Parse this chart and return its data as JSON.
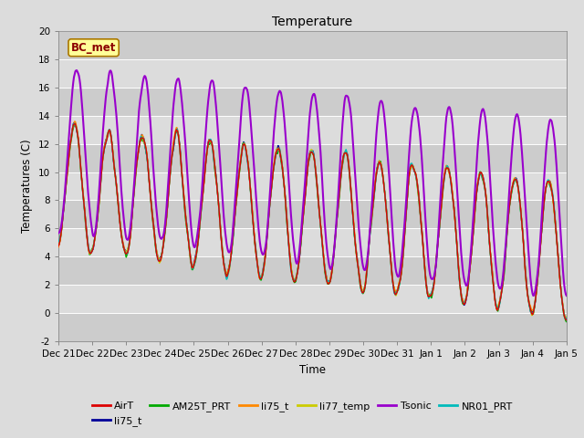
{
  "title": "Temperature",
  "ylabel": "Temperatures (C)",
  "xlabel": "Time",
  "ylim": [
    -2,
    20
  ],
  "annotation_text": "BC_met",
  "annotation_color": "#8B0000",
  "annotation_bg": "#FFFF99",
  "fig_bg": "#DCDCDC",
  "plot_bg": "#DCDCDC",
  "series": [
    {
      "label": "AirT",
      "color": "#DD0000",
      "lw": 1.0,
      "zorder": 4
    },
    {
      "label": "li75_t",
      "color": "#000099",
      "lw": 1.0,
      "zorder": 3
    },
    {
      "label": "AM25T_PRT",
      "color": "#00AA00",
      "lw": 1.0,
      "zorder": 3
    },
    {
      "label": "li75_t",
      "color": "#FF8800",
      "lw": 1.0,
      "zorder": 3
    },
    {
      "label": "li77_temp",
      "color": "#CCCC00",
      "lw": 1.0,
      "zorder": 3
    },
    {
      "label": "Tsonic",
      "color": "#9900CC",
      "lw": 1.5,
      "zorder": 5
    },
    {
      "label": "NR01_PRT",
      "color": "#00BBBB",
      "lw": 1.0,
      "zorder": 3
    }
  ],
  "xtick_labels": [
    "Dec 21",
    "Dec 22",
    "Dec 23",
    "Dec 24",
    "Dec 25",
    "Dec 26",
    "Dec 27",
    "Dec 28",
    "Dec 29",
    "Dec 30",
    "Dec 31",
    "Jan 1",
    "Jan 2",
    "Jan 3",
    "Jan 4",
    "Jan 5"
  ],
  "yticks": [
    -2,
    0,
    2,
    4,
    6,
    8,
    10,
    12,
    14,
    16,
    18,
    20
  ],
  "tick_fontsize": 7.5,
  "title_fontsize": 10,
  "legend_fontsize": 8
}
